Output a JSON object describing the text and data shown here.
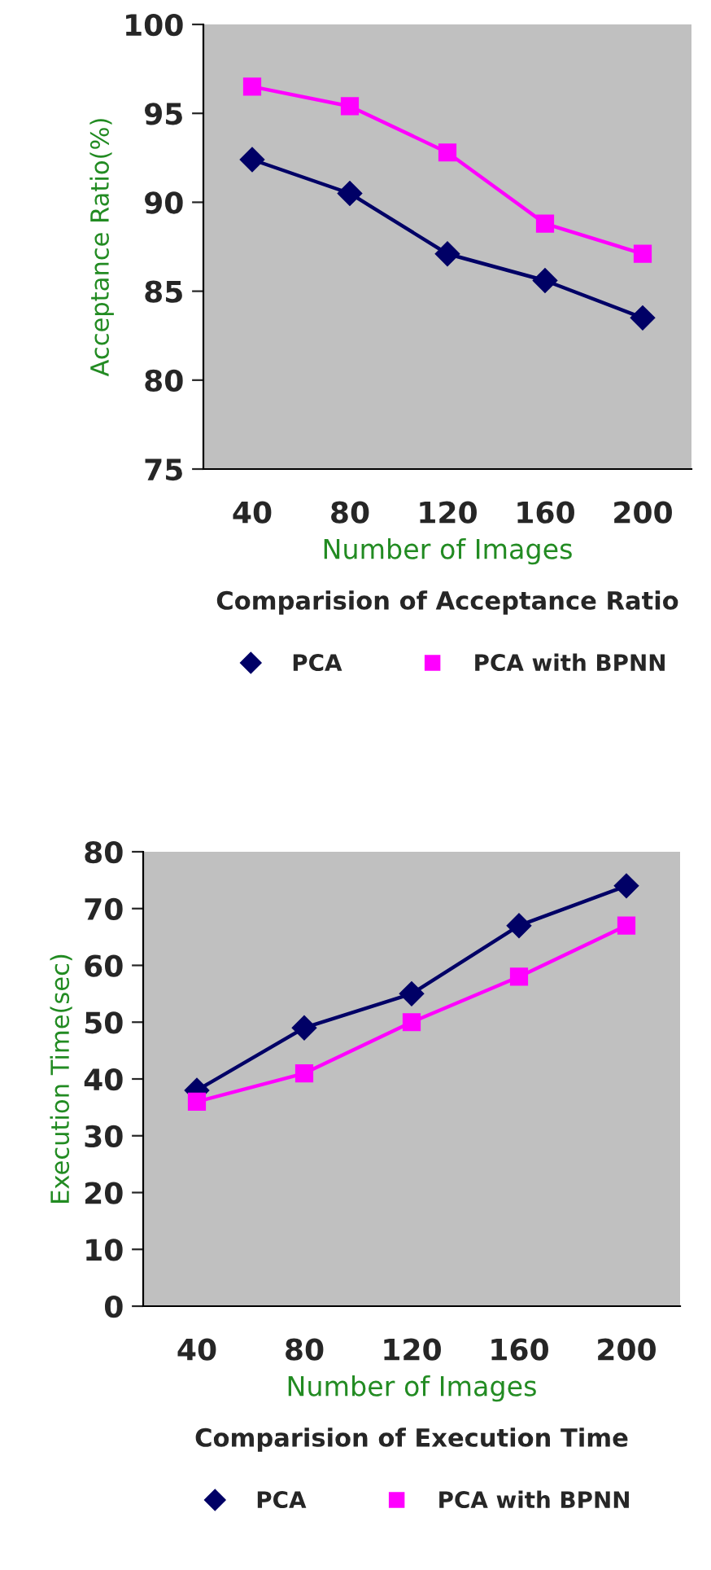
{
  "chart_data": [
    {
      "type": "line",
      "title": "Comparision of Acceptance Ratio",
      "xlabel": "Number of Images",
      "ylabel": "Acceptance Ratio(%)",
      "categories": [
        "40",
        "80",
        "120",
        "160",
        "200"
      ],
      "series": [
        {
          "name": "PCA",
          "color": "#000066",
          "marker": "diamond",
          "values": [
            92.4,
            90.5,
            87.1,
            85.6,
            83.5
          ]
        },
        {
          "name": "PCA with BPNN",
          "color": "#ff00ff",
          "marker": "square",
          "values": [
            96.5,
            95.4,
            92.8,
            88.8,
            87.1
          ]
        }
      ],
      "ylim": [
        75,
        100
      ],
      "yticks": [
        75,
        80,
        85,
        90,
        95,
        100
      ],
      "grid": false,
      "legend": "bottom"
    },
    {
      "type": "line",
      "title": "Comparision of Execution Time",
      "xlabel": "Number of Images",
      "ylabel": "Execution Time(sec)",
      "categories": [
        "40",
        "80",
        "120",
        "160",
        "200"
      ],
      "series": [
        {
          "name": "PCA",
          "color": "#000066",
          "marker": "diamond",
          "values": [
            38,
            49,
            55,
            67,
            74
          ]
        },
        {
          "name": "PCA with BPNN",
          "color": "#ff00ff",
          "marker": "square",
          "values": [
            36,
            41,
            50,
            58,
            67
          ]
        }
      ],
      "ylim": [
        0,
        80
      ],
      "yticks": [
        0,
        10,
        20,
        30,
        40,
        50,
        60,
        70,
        80
      ],
      "grid": false,
      "legend": "bottom"
    }
  ]
}
